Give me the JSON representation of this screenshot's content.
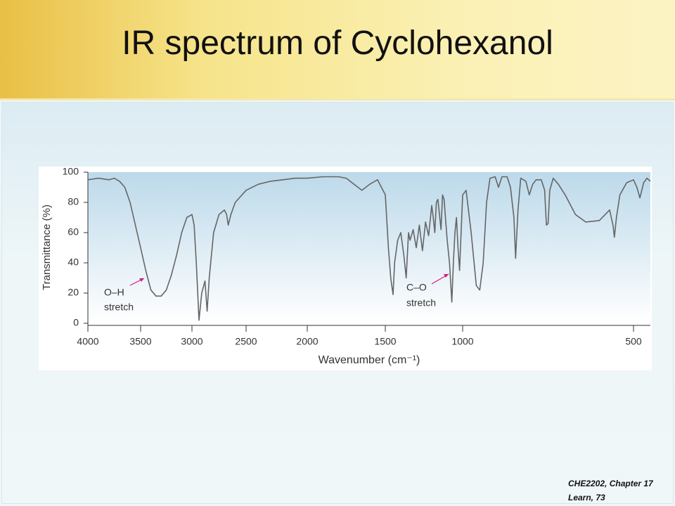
{
  "slide_title": "IR spectrum of Cyclohexanol",
  "footer": [
    "CHE2202, Chapter 17",
    "Learn, 73"
  ],
  "chart_data": {
    "type": "line",
    "x_label": "Wavenumber (cm⁻¹)",
    "y_label": "Transmittance (%)",
    "annotations": [
      {
        "lines": [
          "O–H",
          "stretch"
        ]
      },
      {
        "lines": [
          "C–O",
          "stretch"
        ]
      }
    ],
    "color": "#666666",
    "xlim": [
      4000,
      450
    ],
    "xticks": [
      4000,
      3500,
      3000,
      2500,
      2000,
      1500,
      1000,
      500
    ],
    "ylim": [
      0,
      100
    ],
    "yticks": [
      0,
      20,
      40,
      60,
      80,
      100
    ],
    "x": [
      4000,
      3900,
      3800,
      3750,
      3700,
      3650,
      3600,
      3500,
      3450,
      3400,
      3350,
      3300,
      3250,
      3200,
      3150,
      3100,
      3050,
      3000,
      2980,
      2960,
      2935,
      2910,
      2880,
      2860,
      2840,
      2800,
      2750,
      2700,
      2680,
      2665,
      2640,
      2600,
      2500,
      2400,
      2300,
      2200,
      2100,
      2000,
      1900,
      1800,
      1750,
      1700,
      1650,
      1600,
      1550,
      1500,
      1480,
      1465,
      1450,
      1440,
      1420,
      1400,
      1380,
      1365,
      1350,
      1340,
      1320,
      1300,
      1280,
      1260,
      1240,
      1220,
      1200,
      1190,
      1180,
      1170,
      1160,
      1150,
      1140,
      1130,
      1120,
      1100,
      1085,
      1070,
      1060,
      1050,
      1040,
      1030,
      1020,
      1010,
      1000,
      990,
      975,
      960,
      950,
      940,
      930,
      920,
      905,
      895,
      885,
      870,
      860,
      850,
      845,
      838,
      830,
      815,
      805,
      795,
      785,
      770,
      760,
      755,
      750,
      745,
      735,
      720,
      700,
      670,
      640,
      600,
      570,
      560,
      556,
      550,
      540,
      520,
      500,
      490,
      481,
      470,
      460,
      450
    ],
    "values": [
      95,
      96,
      95,
      96,
      94,
      90,
      80,
      50,
      35,
      22,
      18,
      18,
      22,
      32,
      45,
      60,
      70,
      72,
      65,
      40,
      2,
      20,
      28,
      8,
      30,
      60,
      72,
      75,
      72,
      65,
      72,
      80,
      88,
      92,
      94,
      95,
      96,
      96,
      97,
      97,
      96,
      92,
      88,
      92,
      95,
      85,
      50,
      30,
      19,
      40,
      55,
      60,
      45,
      30,
      60,
      55,
      62,
      50,
      65,
      48,
      67,
      58,
      78,
      70,
      60,
      80,
      82,
      72,
      62,
      85,
      82,
      55,
      40,
      14,
      40,
      60,
      70,
      50,
      35,
      60,
      85,
      88,
      60,
      25,
      22,
      40,
      80,
      96,
      97,
      90,
      97,
      97,
      90,
      70,
      43,
      75,
      96,
      94,
      85,
      92,
      95,
      95,
      88,
      65,
      66,
      88,
      96,
      92,
      85,
      72,
      67,
      68,
      75,
      65,
      57,
      70,
      85,
      93,
      95,
      90,
      83,
      93,
      96,
      94
    ]
  }
}
